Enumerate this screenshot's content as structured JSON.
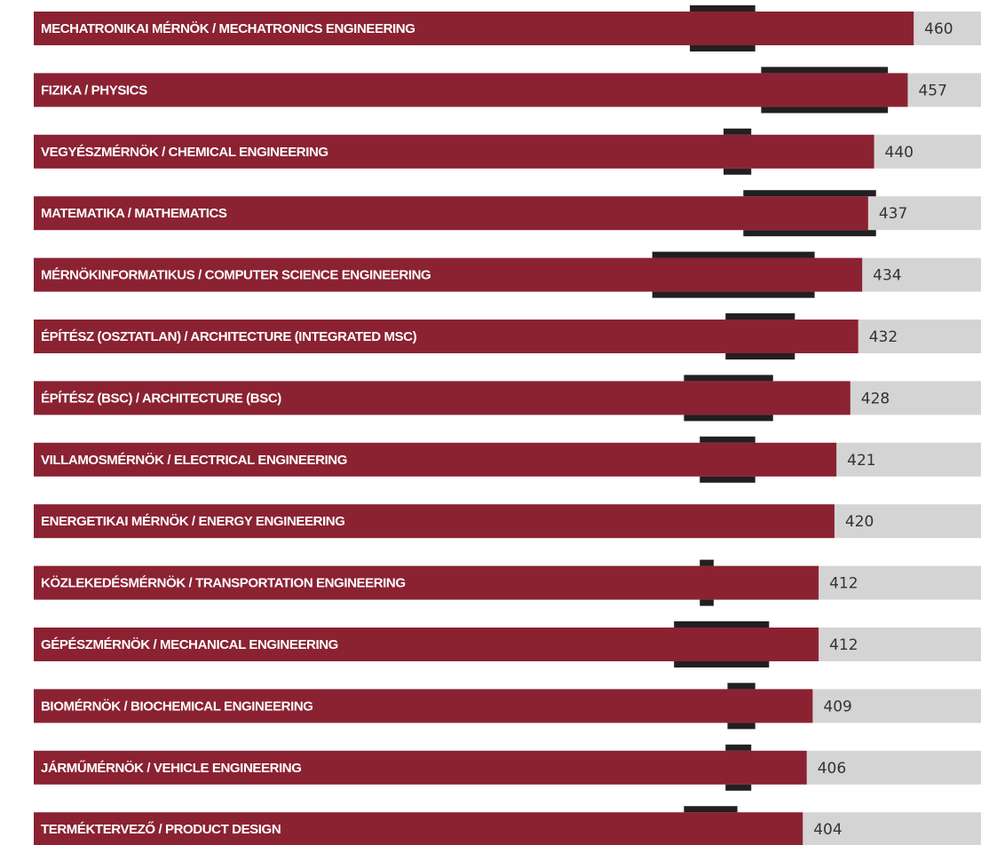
{
  "chart_data": {
    "type": "bar",
    "orientation": "horizontal",
    "categories": [
      "MECHATRONIKAI MÉRNÖK / MECHATRONICS ENGINEERING",
      "FIZIKA / PHYSICS",
      "VEGYÉSZMÉRNÖK / CHEMICAL ENGINEERING",
      "MATEMATIKA / MATHEMATICS",
      "MÉRNÖKINFORMATIKUS / COMPUTER SCIENCE ENGINEERING",
      "ÉPÍTÉSZ (OSZTATLAN) / ARCHITECTURE (INTEGRATED MSC)",
      "ÉPÍTÉSZ (BSC) / ARCHITECTURE (BSC)",
      "VILLAMOSMÉRNÖK / ELECTRICAL ENGINEERING",
      "ENERGETIKAI MÉRNÖK / ENERGY ENGINEERING",
      "KÖZLEKEDÉSMÉRNÖK / TRANSPORTATION ENGINEERING",
      "GÉPÉSZMÉRNÖK / MECHANICAL ENGINEERING",
      "BIOMÉRNÖK / BIOCHEMICAL ENGINEERING",
      "JÁRMŰMÉRNÖK / VEHICLE ENGINEERING",
      "TERMÉKTERVEZŐ / PRODUCT DESIGN"
    ],
    "values": [
      460,
      457,
      440,
      437,
      434,
      432,
      428,
      421,
      420,
      412,
      412,
      409,
      406,
      404
    ],
    "ranges": [
      [
        347,
        380
      ],
      [
        383,
        447
      ],
      [
        364,
        378
      ],
      [
        374,
        441
      ],
      [
        328,
        410
      ],
      [
        365,
        400
      ],
      [
        344,
        389
      ],
      [
        352,
        380
      ],
      null,
      [
        352,
        359
      ],
      [
        339,
        387
      ],
      [
        366,
        380
      ],
      [
        365,
        378
      ],
      [
        344,
        371
      ]
    ],
    "color": "#8b2232",
    "track_color": "#d4d4d4",
    "range_color": "#231f20",
    "xlim": [
      0,
      494
    ]
  }
}
